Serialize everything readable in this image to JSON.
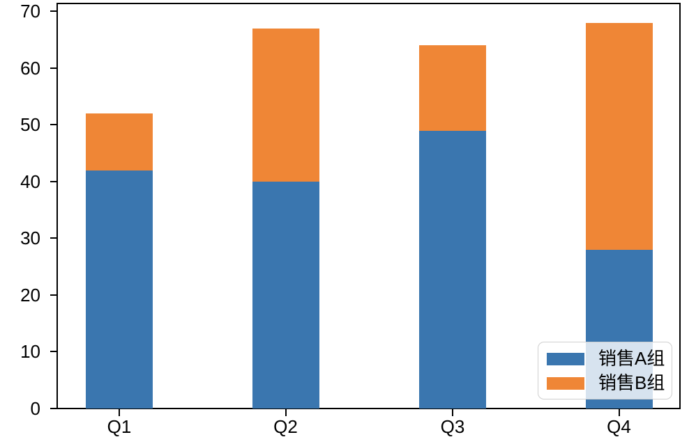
{
  "figure": {
    "background": "#ffffff",
    "spine_color": "#000000"
  },
  "y_axis": {
    "tick_labels": [
      "0",
      "10",
      "20",
      "30",
      "40",
      "50",
      "60",
      "70"
    ],
    "range": [
      0,
      71.4
    ]
  },
  "x_axis": {
    "tick_labels": [
      "Q1",
      "Q2",
      "Q3",
      "Q4"
    ]
  },
  "legend": {
    "position": "lower right",
    "entries": [
      {
        "label": "销售A组",
        "color": "#3a76af"
      },
      {
        "label": "销售B组",
        "color": "#ef8636"
      }
    ]
  },
  "chart_data": {
    "type": "bar",
    "stacked": true,
    "categories": [
      "Q1",
      "Q2",
      "Q3",
      "Q4"
    ],
    "series": [
      {
        "name": "销售A组",
        "color": "#3a76af",
        "values": [
          42,
          40,
          49,
          28
        ]
      },
      {
        "name": "销售B组",
        "color": "#ef8636",
        "values": [
          10,
          27,
          15,
          40
        ]
      }
    ],
    "totals": [
      52,
      67,
      64,
      68
    ],
    "title": "",
    "xlabel": "",
    "ylabel": "",
    "ylim": [
      0,
      71.4
    ],
    "yticks": [
      0,
      10,
      20,
      30,
      40,
      50,
      60,
      70
    ],
    "grid": false,
    "legend_position": "lower right"
  }
}
